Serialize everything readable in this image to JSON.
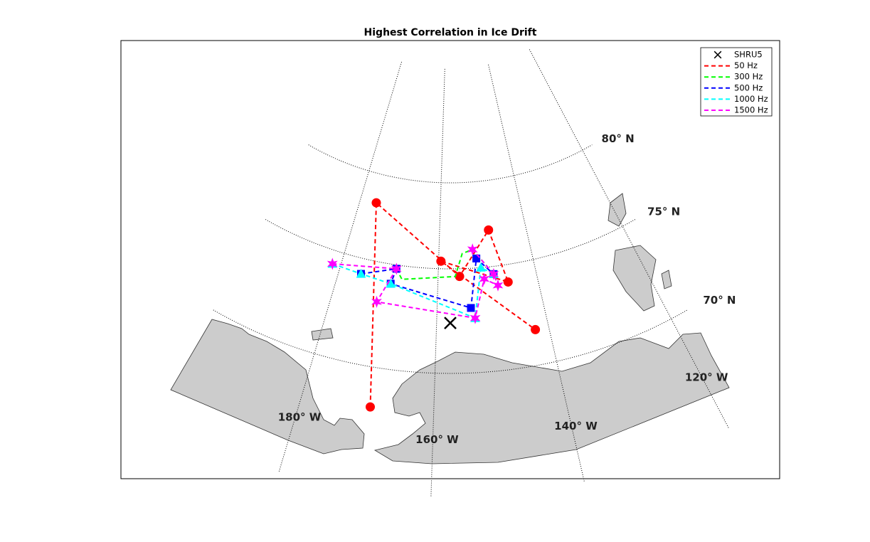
{
  "chart_data": {
    "type": "map",
    "title": "Highest Correlation in Ice Drift",
    "xlim": [
      -198,
      -117
    ],
    "ylim": [
      65,
      85
    ],
    "xticks": [
      {
        "value": -180,
        "label": "180° W"
      },
      {
        "value": -160,
        "label": "160° W"
      },
      {
        "value": -140,
        "label": "140° W"
      },
      {
        "value": -120,
        "label": "120° W"
      }
    ],
    "yticks": [
      {
        "value": 70,
        "label": "70° N"
      },
      {
        "value": 75,
        "label": "75° N"
      },
      {
        "value": 80,
        "label": "80° N"
      }
    ],
    "grid": true,
    "legend": "upper right",
    "series": [
      {
        "name": "SHRU5",
        "color": "#000000",
        "marker": "x",
        "line": "none",
        "x": [
          -157.5
        ],
        "y": [
          72.3
        ]
      },
      {
        "name": "50 Hz",
        "color": "#ff0000",
        "marker": "o",
        "line": "dashed",
        "x": [
          -169.6,
          -176.0,
          -155.6,
          -148.6,
          -145.9,
          -159.5,
          -142.4
        ],
        "y": [
          68.3,
          78.2,
          74.6,
          77.0,
          74.1,
          75.4,
          71.6
        ]
      },
      {
        "name": "300 Hz",
        "color": "#00ff00",
        "marker": "none",
        "line": "dashed",
        "x": [
          -168.7,
          -167.3,
          -156.5,
          -154.9,
          -152.6,
          -148.6
        ],
        "y": [
          74.8,
          74.3,
          74.6,
          75.8,
          76.0,
          74.6
        ]
      },
      {
        "name": "500 Hz",
        "color": "#0000ff",
        "marker": "s",
        "line": "dashed",
        "x": [
          -175.6,
          -168.7,
          -169.4,
          -153.6,
          -151.9,
          -148.6
        ],
        "y": [
          74.2,
          74.8,
          74.0,
          73.0,
          75.5,
          74.6
        ]
      },
      {
        "name": "1000 Hz",
        "color": "#00ffff",
        "marker": "^",
        "line": "dashed",
        "x": [
          -181.7,
          -175.6,
          -169.4,
          -152.9,
          -151.1,
          -148.6
        ],
        "y": [
          74.3,
          74.2,
          74.0,
          72.5,
          75.0,
          74.6
        ]
      },
      {
        "name": "1500 Hz",
        "color": "#ff00ff",
        "marker": "h",
        "line": "dashed",
        "x": [
          -181.7,
          -168.7,
          -171.5,
          -152.9,
          -150.6,
          -148.0,
          -148.6,
          -152.6
        ],
        "y": [
          74.3,
          74.8,
          73.0,
          72.5,
          74.4,
          74.0,
          74.6,
          76.0
        ]
      }
    ]
  }
}
